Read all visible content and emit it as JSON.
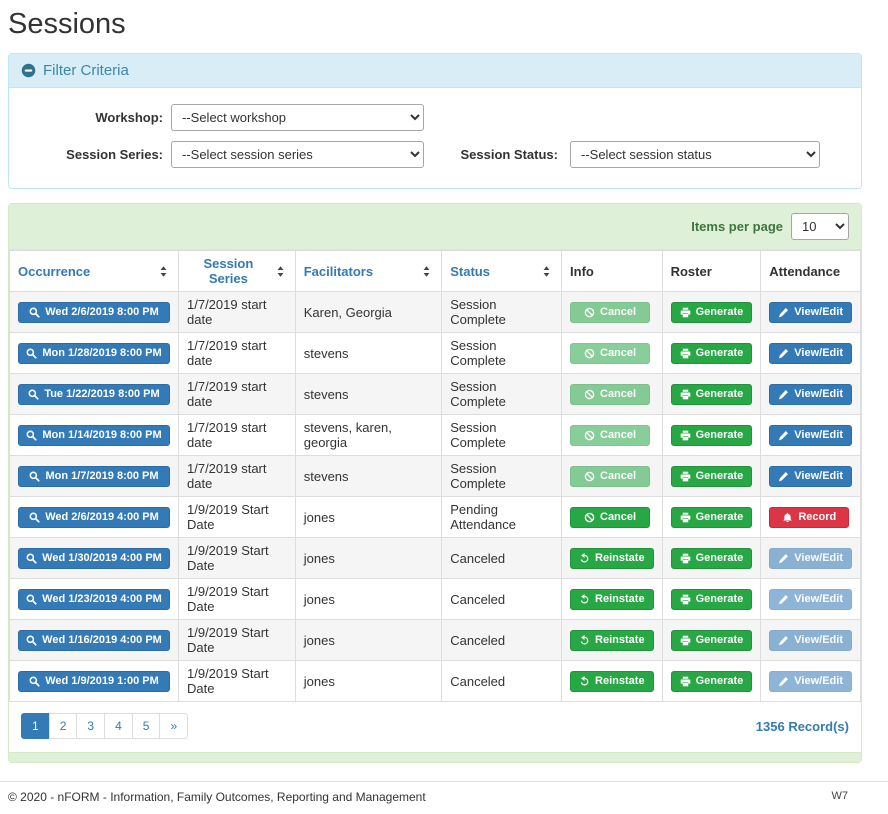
{
  "page": {
    "title": "Sessions"
  },
  "filter": {
    "title": "Filter Criteria",
    "workshop": {
      "label": "Workshop:",
      "selected": "--Select workshop"
    },
    "session_series": {
      "label": "Session Series:",
      "selected": "--Select session series"
    },
    "session_status": {
      "label": "Session Status:",
      "selected": "--Select session status"
    }
  },
  "sessions": {
    "items_per_page": {
      "label": "Items per page",
      "selected": "10"
    },
    "columns": [
      {
        "label": "Occurrence",
        "sortable": true
      },
      {
        "label": "Session Series",
        "sortable": true
      },
      {
        "label": "Facilitators",
        "sortable": true
      },
      {
        "label": "Status",
        "sortable": true
      },
      {
        "label": "Info",
        "sortable": false
      },
      {
        "label": "Roster",
        "sortable": false
      },
      {
        "label": "Attendance",
        "sortable": false
      }
    ],
    "rows": [
      {
        "occurrence": "Wed 2/6/2019 8:00 PM",
        "session_series": "1/7/2019 start date",
        "facilitators": "Karen, Georgia",
        "status": "Session Complete",
        "info": {
          "label": "Cancel",
          "icon": "ban-icon",
          "variant": "green",
          "disabled": true
        },
        "roster": {
          "label": "Generate",
          "icon": "printer-icon",
          "variant": "green",
          "disabled": false
        },
        "attendance": {
          "label": "View/Edit",
          "icon": "pencil-icon",
          "variant": "blue",
          "disabled": false
        }
      },
      {
        "occurrence": "Mon 1/28/2019 8:00 PM",
        "session_series": "1/7/2019 start date",
        "facilitators": "stevens",
        "status": "Session Complete",
        "info": {
          "label": "Cancel",
          "icon": "ban-icon",
          "variant": "green",
          "disabled": true
        },
        "roster": {
          "label": "Generate",
          "icon": "printer-icon",
          "variant": "green",
          "disabled": false
        },
        "attendance": {
          "label": "View/Edit",
          "icon": "pencil-icon",
          "variant": "blue",
          "disabled": false
        }
      },
      {
        "occurrence": "Tue 1/22/2019 8:00 PM",
        "session_series": "1/7/2019 start date",
        "facilitators": "stevens",
        "status": "Session Complete",
        "info": {
          "label": "Cancel",
          "icon": "ban-icon",
          "variant": "green",
          "disabled": true
        },
        "roster": {
          "label": "Generate",
          "icon": "printer-icon",
          "variant": "green",
          "disabled": false
        },
        "attendance": {
          "label": "View/Edit",
          "icon": "pencil-icon",
          "variant": "blue",
          "disabled": false
        }
      },
      {
        "occurrence": "Mon 1/14/2019 8:00 PM",
        "session_series": "1/7/2019 start date",
        "facilitators": "stevens, karen, georgia",
        "status": "Session Complete",
        "info": {
          "label": "Cancel",
          "icon": "ban-icon",
          "variant": "green",
          "disabled": true
        },
        "roster": {
          "label": "Generate",
          "icon": "printer-icon",
          "variant": "green",
          "disabled": false
        },
        "attendance": {
          "label": "View/Edit",
          "icon": "pencil-icon",
          "variant": "blue",
          "disabled": false
        }
      },
      {
        "occurrence": "Mon 1/7/2019 8:00 PM",
        "session_series": "1/7/2019 start date",
        "facilitators": "stevens",
        "status": "Session Complete",
        "info": {
          "label": "Cancel",
          "icon": "ban-icon",
          "variant": "green",
          "disabled": true
        },
        "roster": {
          "label": "Generate",
          "icon": "printer-icon",
          "variant": "green",
          "disabled": false
        },
        "attendance": {
          "label": "View/Edit",
          "icon": "pencil-icon",
          "variant": "blue",
          "disabled": false
        }
      },
      {
        "occurrence": "Wed 2/6/2019 4:00 PM",
        "session_series": "1/9/2019 Start Date",
        "facilitators": "jones",
        "status": "Pending Attendance",
        "info": {
          "label": "Cancel",
          "icon": "ban-icon",
          "variant": "green",
          "disabled": false
        },
        "roster": {
          "label": "Generate",
          "icon": "printer-icon",
          "variant": "green",
          "disabled": false
        },
        "attendance": {
          "label": "Record",
          "icon": "bell-icon",
          "variant": "red",
          "disabled": false
        }
      },
      {
        "occurrence": "Wed 1/30/2019 4:00 PM",
        "session_series": "1/9/2019 Start Date",
        "facilitators": "jones",
        "status": "Canceled",
        "info": {
          "label": "Reinstate",
          "icon": "undo-icon",
          "variant": "green",
          "disabled": false
        },
        "roster": {
          "label": "Generate",
          "icon": "printer-icon",
          "variant": "green",
          "disabled": false
        },
        "attendance": {
          "label": "View/Edit",
          "icon": "pencil-icon",
          "variant": "blue",
          "disabled": true
        }
      },
      {
        "occurrence": "Wed 1/23/2019 4:00 PM",
        "session_series": "1/9/2019 Start Date",
        "facilitators": "jones",
        "status": "Canceled",
        "info": {
          "label": "Reinstate",
          "icon": "undo-icon",
          "variant": "green",
          "disabled": false
        },
        "roster": {
          "label": "Generate",
          "icon": "printer-icon",
          "variant": "green",
          "disabled": false
        },
        "attendance": {
          "label": "View/Edit",
          "icon": "pencil-icon",
          "variant": "blue",
          "disabled": true
        }
      },
      {
        "occurrence": "Wed 1/16/2019 4:00 PM",
        "session_series": "1/9/2019 Start Date",
        "facilitators": "jones",
        "status": "Canceled",
        "info": {
          "label": "Reinstate",
          "icon": "undo-icon",
          "variant": "green",
          "disabled": false
        },
        "roster": {
          "label": "Generate",
          "icon": "printer-icon",
          "variant": "green",
          "disabled": false
        },
        "attendance": {
          "label": "View/Edit",
          "icon": "pencil-icon",
          "variant": "blue",
          "disabled": true
        }
      },
      {
        "occurrence": "Wed 1/9/2019 1:00 PM",
        "session_series": "1/9/2019 Start Date",
        "facilitators": "jones",
        "status": "Canceled",
        "info": {
          "label": "Reinstate",
          "icon": "undo-icon",
          "variant": "green",
          "disabled": false
        },
        "roster": {
          "label": "Generate",
          "icon": "printer-icon",
          "variant": "green",
          "disabled": false
        },
        "attendance": {
          "label": "View/Edit",
          "icon": "pencil-icon",
          "variant": "blue",
          "disabled": true
        }
      }
    ],
    "pagination": {
      "pages": [
        "1",
        "2",
        "3",
        "4",
        "5"
      ],
      "active": "1",
      "next": "»"
    },
    "record_count": "1356 Record(s)"
  },
  "footer": {
    "copyright": "© 2020 - nFORM - Information, Family Outcomes, Reporting and Management",
    "code": "W7"
  }
}
